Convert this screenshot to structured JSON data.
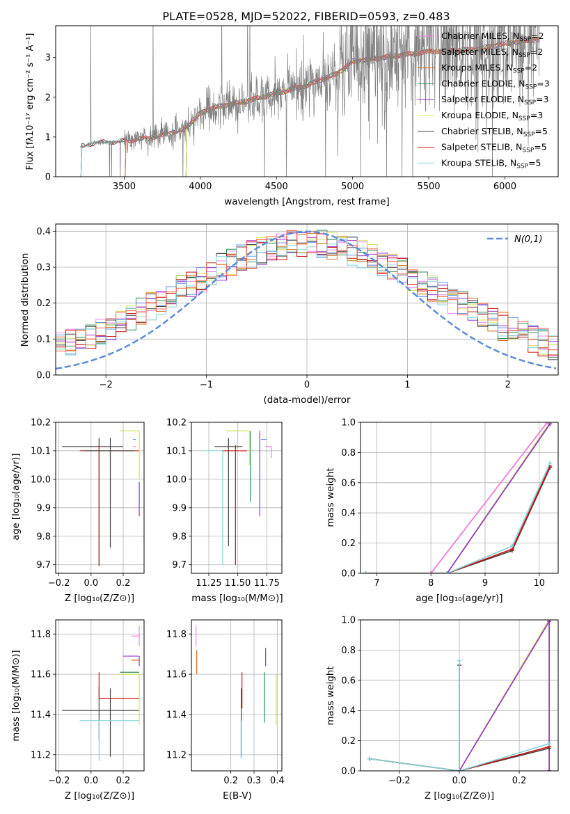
{
  "figure_title": "PLATE=0528, MJD=52022, FIBERID=0593, z=0.483",
  "colors": {
    "chabrier_miles": "#ee82ee",
    "salpeter_miles": "#6495ed",
    "kroupa_miles": "#d2691e",
    "chabrier_elodie": "#2e8b57",
    "salpeter_elodie": "#9932cc",
    "kroupa_elodie": "#d4e157",
    "chabrier_stelib": "#404040",
    "salpeter_stelib": "#cc1111",
    "kroupa_stelib": "#7fd4d8",
    "observed": "#808080",
    "normal": "#5b8bd9",
    "tomato": "#ff6347"
  },
  "chart_data": [
    {
      "id": "spectrum",
      "type": "line",
      "xlabel": "wavelength [Angstrom, rest frame]",
      "ylabel": "Flux [fλ10⁻¹⁷ erg cm⁻² s⁻¹ A⁻¹]",
      "xlim": [
        3050,
        6350
      ],
      "ylim": [
        0,
        3.8
      ],
      "xticks": [
        3500,
        4000,
        4500,
        5000,
        5500,
        6000
      ],
      "yticks": [
        0,
        1,
        2,
        3
      ],
      "grid": false,
      "legend_position": "right",
      "observed_range": [
        3210,
        6230
      ],
      "continuum": {
        "x": [
          3210,
          3300,
          3500,
          3700,
          3900,
          4000,
          4100,
          4300,
          4500,
          4700,
          4900,
          5000,
          5200,
          5500,
          5800,
          6000,
          6200
        ],
        "y": [
          0.75,
          0.85,
          0.9,
          1.0,
          1.2,
          1.6,
          1.75,
          1.9,
          2.1,
          2.3,
          2.6,
          2.9,
          3.0,
          3.15,
          3.2,
          3.35,
          3.45
        ]
      },
      "series": [
        {
          "name": "Chabrier MILES, N_SSP=2",
          "label_main": "Chabrier MILES, N",
          "label_sub": "SSP",
          "label_tail": "=2",
          "color_key": "chabrier_miles",
          "start": 3500
        },
        {
          "name": "Salpeter MILES, N_SSP=2",
          "label_main": "Salpeter MILES, N",
          "label_sub": "SSP",
          "label_tail": "=2",
          "color_key": "tomato",
          "start": 3500
        },
        {
          "name": "Kroupa MILES, N_SSP=2",
          "label_main": "Kroupa MILES, N",
          "label_sub": "SSP",
          "label_tail": "=2",
          "color_key": "kroupa_miles",
          "start": 3500
        },
        {
          "name": "Chabrier ELODIE, N_SSP=3",
          "label_main": "Chabrier ELODIE, N",
          "label_sub": "SSP",
          "label_tail": "=3",
          "color_key": "chabrier_elodie",
          "start": 3900
        },
        {
          "name": "Salpeter ELODIE, N_SSP=3",
          "label_main": "Salpeter ELODIE, N",
          "label_sub": "SSP",
          "label_tail": "=3",
          "color_key": "salpeter_elodie",
          "start": 3900
        },
        {
          "name": "Kroupa ELODIE, N_SSP=3",
          "label_main": "Kroupa ELODIE, N",
          "label_sub": "SSP",
          "label_tail": "=3",
          "color_key": "kroupa_elodie",
          "start": 3900
        },
        {
          "name": "Chabrier STELIB, N_SSP=5",
          "label_main": "Chabrier STELIB, N",
          "label_sub": "SSP",
          "label_tail": "=5",
          "color_key": "chabrier_stelib",
          "start": 3210
        },
        {
          "name": "Salpeter STELIB, N_SSP=5",
          "label_main": "Salpeter STELIB, N",
          "label_sub": "SSP",
          "label_tail": "=5",
          "color_key": "salpeter_stelib",
          "start": 3210
        },
        {
          "name": "Kroupa STELIB, N_SSP=5",
          "label_main": "Kroupa STELIB, N",
          "label_sub": "SSP",
          "label_tail": "=5",
          "color_key": "kroupa_stelib",
          "start": 3210
        }
      ]
    },
    {
      "id": "residuals",
      "type": "histogram",
      "xlabel": "(data-model)/error",
      "ylabel": "Normed distribution",
      "xlim": [
        -2.5,
        2.5
      ],
      "ylim": [
        0,
        0.42
      ],
      "xticks": [
        -2,
        -1,
        0,
        1,
        2
      ],
      "yticks": [
        0.0,
        0.1,
        0.2,
        0.3,
        0.4
      ],
      "grid": true,
      "bin_width": 0.1,
      "legend": "N(0,1)",
      "legend_position": "top-right",
      "normal_curve": {
        "mean": 0,
        "sigma": 1
      }
    },
    {
      "id": "age_vs_Z",
      "type": "errorbar",
      "xlabel": "Z [log₁₀(Z/Z⊙)]",
      "ylabel": "age  [log₁₀(age/yr)]",
      "xlim": [
        -0.22,
        0.33
      ],
      "ylim": [
        9.67,
        10.2
      ],
      "xticks": [
        -0.2,
        0.0,
        0.2
      ],
      "yticks": [
        9.7,
        9.8,
        9.9,
        10.0,
        10.1,
        10.2
      ],
      "grid": true,
      "points": [
        {
          "color_key": "chabrier_stelib",
          "x": 0.05,
          "xerr": [
            0.23,
            0.15
          ],
          "y": 10.115,
          "yerr": [
            0.42,
            0.03
          ]
        },
        {
          "color_key": "salpeter_stelib",
          "x": 0.05,
          "xerr": [
            0.12,
            0.25
          ],
          "y": 10.1,
          "yerr": [
            0.4,
            0.02
          ]
        },
        {
          "color_key": "chabrier_stelib",
          "x": 0.12,
          "xerr": [
            0.17,
            0.15
          ],
          "y": 10.1,
          "yerr": [
            0.34,
            0.045
          ]
        },
        {
          "color_key": "kroupa_elodie",
          "x": 0.3,
          "xerr": [
            0.12,
            0.0
          ],
          "y": 10.17,
          "yerr": [
            0.17,
            0.0
          ]
        },
        {
          "color_key": "salpeter_elodie",
          "x": 0.3,
          "xerr": [
            0.0,
            0.0
          ],
          "y": 9.93,
          "yerr": [
            0.06,
            0.06
          ]
        },
        {
          "color_key": "salpeter_miles",
          "x": 0.28,
          "xerr": [
            0.02,
            0.0
          ],
          "y": 10.14,
          "yerr": [
            0.0,
            0.0
          ]
        },
        {
          "color_key": "chabrier_miles",
          "x": 0.28,
          "xerr": [
            0.02,
            0.0
          ],
          "y": 10.115,
          "yerr": [
            0.0,
            0.0
          ]
        }
      ]
    },
    {
      "id": "age_vs_mass",
      "type": "errorbar",
      "xlabel": "mass [log₁₀(M/M⊙)]",
      "ylabel": "",
      "xlim": [
        11.1,
        11.88
      ],
      "ylim": [
        9.67,
        10.2
      ],
      "xticks": [
        11.25,
        11.5,
        11.75
      ],
      "yticks": [
        9.7,
        9.8,
        9.9,
        10.0,
        10.1,
        10.2
      ],
      "grid": true,
      "points": [
        {
          "color_key": "chabrier_stelib",
          "x": 11.42,
          "xerr": [
            0.12,
            0.12
          ],
          "y": 10.115,
          "yerr": [
            0.35,
            0.03
          ]
        },
        {
          "color_key": "salpeter_stelib",
          "x": 11.48,
          "xerr": [
            0.12,
            0.1
          ],
          "y": 10.1,
          "yerr": [
            0.4,
            0.02
          ]
        },
        {
          "color_key": "kroupa_stelib",
          "x": 11.37,
          "xerr": [
            0.17,
            0.0
          ],
          "y": 10.1,
          "yerr": [
            0.4,
            0.0
          ]
        },
        {
          "color_key": "kroupa_elodie",
          "x": 11.6,
          "xerr": [
            0.2,
            0.0
          ],
          "y": 10.17,
          "yerr": [
            0.12,
            0.0
          ]
        },
        {
          "color_key": "chabrier_elodie",
          "x": 11.61,
          "xerr": [
            0.0,
            0.0
          ],
          "y": 10.0,
          "yerr": [
            0.08,
            0.17
          ]
        },
        {
          "color_key": "salpeter_elodie",
          "x": 11.69,
          "xerr": [
            0.0,
            0.0
          ],
          "y": 10.0,
          "yerr": [
            0.13,
            0.17
          ]
        },
        {
          "color_key": "chabrier_miles",
          "x": 11.79,
          "xerr": [
            0.05,
            0.0
          ],
          "y": 10.115,
          "yerr": [
            0.04,
            0.0
          ]
        },
        {
          "color_key": "salpeter_miles",
          "x": 11.75,
          "xerr": [
            0.05,
            0.0
          ],
          "y": 10.14,
          "yerr": [
            0.0,
            0.0
          ]
        }
      ]
    },
    {
      "id": "mass_weight_vs_age",
      "type": "line",
      "xlabel": "age  [log₁₀(age/yr)]",
      "ylabel": "mass weight",
      "xlim": [
        6.7,
        10.35
      ],
      "ylim": [
        0,
        1.0
      ],
      "xticks": [
        7,
        8,
        9,
        10
      ],
      "yticks": [
        0.0,
        0.2,
        0.4,
        0.6,
        0.8,
        1.0
      ],
      "grid": true,
      "series": [
        {
          "color_key": "kroupa_miles",
          "x": [
            8.0,
            10.15
          ],
          "y": [
            0.0,
            1.0
          ]
        },
        {
          "color_key": "tomato",
          "x": [
            8.0,
            10.15
          ],
          "y": [
            0.0,
            1.0
          ]
        },
        {
          "color_key": "chabrier_miles",
          "x": [
            8.0,
            10.15
          ],
          "y": [
            0.0,
            1.0
          ]
        },
        {
          "color_key": "kroupa_elodie",
          "x": [
            6.8,
            8.3,
            10.2
          ],
          "y": [
            0.0,
            0.0,
            1.0
          ]
        },
        {
          "color_key": "chabrier_elodie",
          "x": [
            6.8,
            8.3,
            10.2
          ],
          "y": [
            0.0,
            0.0,
            0.99
          ]
        },
        {
          "color_key": "salpeter_elodie",
          "x": [
            6.8,
            8.3,
            10.2
          ],
          "y": [
            0.0,
            0.0,
            0.99
          ]
        },
        {
          "color_key": "chabrier_stelib",
          "x": [
            6.8,
            8.3,
            9.5,
            10.2
          ],
          "y": [
            0.0,
            0.0,
            0.15,
            0.7
          ]
        },
        {
          "color_key": "salpeter_stelib",
          "x": [
            6.8,
            8.3,
            9.5,
            10.2
          ],
          "y": [
            0.0,
            0.0,
            0.16,
            0.71
          ]
        },
        {
          "color_key": "kroupa_stelib",
          "x": [
            6.8,
            8.3,
            9.5,
            10.2
          ],
          "y": [
            0.0,
            0.0,
            0.18,
            0.73
          ]
        }
      ]
    },
    {
      "id": "mass_vs_Z",
      "type": "errorbar",
      "xlabel": "Z [log₁₀(Z/Z⊙)]",
      "ylabel": "mass [log₁₀(M/M⊙)]",
      "xlim": [
        -0.22,
        0.33
      ],
      "ylim": [
        11.12,
        11.87
      ],
      "xticks": [
        -0.2,
        0.0,
        0.2
      ],
      "yticks": [
        11.2,
        11.4,
        11.6,
        11.8
      ],
      "grid": true,
      "points": [
        {
          "color_key": "chabrier_stelib",
          "x": 0.05,
          "xerr": [
            0.23,
            0.25
          ],
          "y": 11.42,
          "yerr": [
            0.15,
            0.12
          ]
        },
        {
          "color_key": "salpeter_stelib",
          "x": 0.05,
          "xerr": [
            0.0,
            0.25
          ],
          "y": 11.48,
          "yerr": [
            0.0,
            0.13
          ]
        },
        {
          "color_key": "chabrier_stelib",
          "x": 0.12,
          "xerr": [
            0.0,
            0.0
          ],
          "y": 11.42,
          "yerr": [
            0.23,
            0.11
          ]
        },
        {
          "color_key": "kroupa_stelib",
          "x": 0.05,
          "xerr": [
            0.12,
            0.25
          ],
          "y": 11.37,
          "yerr": [
            0.2,
            0.0
          ]
        },
        {
          "color_key": "kroupa_elodie",
          "x": 0.3,
          "xerr": [
            0.12,
            0.0
          ],
          "y": 11.6,
          "yerr": [
            0.25,
            0.0
          ]
        },
        {
          "color_key": "chabrier_elodie",
          "x": 0.3,
          "xerr": [
            0.12,
            0.0
          ],
          "y": 11.61,
          "yerr": [
            0.0,
            0.0
          ]
        },
        {
          "color_key": "salpeter_elodie",
          "x": 0.3,
          "xerr": [
            0.1,
            0.0
          ],
          "y": 11.69,
          "yerr": [
            0.05,
            0.0
          ]
        },
        {
          "color_key": "chabrier_miles",
          "x": 0.3,
          "xerr": [
            0.05,
            0.0
          ],
          "y": 11.79,
          "yerr": [
            0.05,
            0.05
          ]
        },
        {
          "color_key": "kroupa_miles",
          "x": 0.3,
          "xerr": [
            0.05,
            0.0
          ],
          "y": 11.67,
          "yerr": [
            0.0,
            0.0
          ]
        }
      ]
    },
    {
      "id": "mass_vs_ebv",
      "type": "errorbar",
      "xlabel": "E(B-V)",
      "ylabel": "",
      "xlim": [
        0.03,
        0.42
      ],
      "ylim": [
        11.12,
        11.87
      ],
      "xticks": [
        0.2,
        0.3,
        0.4
      ],
      "yticks": [
        11.2,
        11.4,
        11.6,
        11.8
      ],
      "grid": true,
      "points": [
        {
          "color_key": "chabrier_miles",
          "x": 0.05,
          "xerr": [
            0.0,
            0.0
          ],
          "y": 11.79,
          "yerr": [
            0.05,
            0.05
          ]
        },
        {
          "color_key": "kroupa_miles",
          "x": 0.053,
          "xerr": [
            0.0,
            0.0
          ],
          "y": 11.67,
          "yerr": [
            0.07,
            0.05
          ]
        },
        {
          "color_key": "chabrier_stelib",
          "x": 0.245,
          "xerr": [
            0.0,
            0.0
          ],
          "y": 11.42,
          "yerr": [
            0.23,
            0.11
          ]
        },
        {
          "color_key": "salpeter_stelib",
          "x": 0.248,
          "xerr": [
            0.0,
            0.0
          ],
          "y": 11.48,
          "yerr": [
            0.05,
            0.13
          ]
        },
        {
          "color_key": "kroupa_stelib",
          "x": 0.244,
          "xerr": [
            0.0,
            0.0
          ],
          "y": 11.37,
          "yerr": [
            0.19,
            0.0
          ]
        },
        {
          "color_key": "chabrier_elodie",
          "x": 0.345,
          "xerr": [
            0.0,
            0.0
          ],
          "y": 11.61,
          "yerr": [
            0.25,
            0.0
          ]
        },
        {
          "color_key": "salpeter_elodie",
          "x": 0.35,
          "xerr": [
            0.0,
            0.0
          ],
          "y": 11.69,
          "yerr": [
            0.05,
            0.04
          ]
        },
        {
          "color_key": "kroupa_elodie",
          "x": 0.395,
          "xerr": [
            0.0,
            0.0
          ],
          "y": 11.6,
          "yerr": [
            0.25,
            0.0
          ]
        }
      ]
    },
    {
      "id": "mass_weight_vs_Z",
      "type": "line",
      "xlabel": "Z [log₁₀(Z/Z⊙)]",
      "ylabel": "mass weight",
      "xlim": [
        -0.33,
        0.33
      ],
      "ylim": [
        0,
        1.0
      ],
      "xticks": [
        -0.2,
        0.0,
        0.2
      ],
      "yticks": [
        0.0,
        0.2,
        0.4,
        0.6,
        0.8,
        1.0
      ],
      "grid": true,
      "series": [
        {
          "color_key": "chabrier_elodie",
          "x": [
            0.0,
            0.3,
            0.3
          ],
          "y": [
            0.0,
            1.0,
            0.0
          ]
        },
        {
          "color_key": "kroupa_elodie",
          "x": [
            0.0,
            0.3,
            0.3
          ],
          "y": [
            0.0,
            1.0,
            0.0
          ]
        },
        {
          "color_key": "salpeter_elodie",
          "x": [
            0.0,
            0.3,
            0.3
          ],
          "y": [
            0.0,
            0.99,
            0.0
          ]
        },
        {
          "color_key": "chabrier_stelib",
          "x": [
            -0.3,
            0.0,
            0.3
          ],
          "y": [
            0.08,
            0.0,
            0.15
          ]
        },
        {
          "color_key": "salpeter_stelib",
          "x": [
            -0.3,
            0.0,
            0.3
          ],
          "y": [
            0.08,
            0.0,
            0.16
          ]
        },
        {
          "color_key": "kroupa_stelib",
          "x": [
            -0.3,
            0.0,
            0.3
          ],
          "y": [
            0.08,
            0.0,
            0.18
          ]
        },
        {
          "color_key": "chabrier_stelib",
          "x": [
            0.0,
            0.0
          ],
          "y": [
            0.0,
            0.7
          ]
        },
        {
          "color_key": "kroupa_stelib",
          "x": [
            0.0,
            0.0
          ],
          "y": [
            0.0,
            0.73
          ]
        }
      ]
    }
  ]
}
